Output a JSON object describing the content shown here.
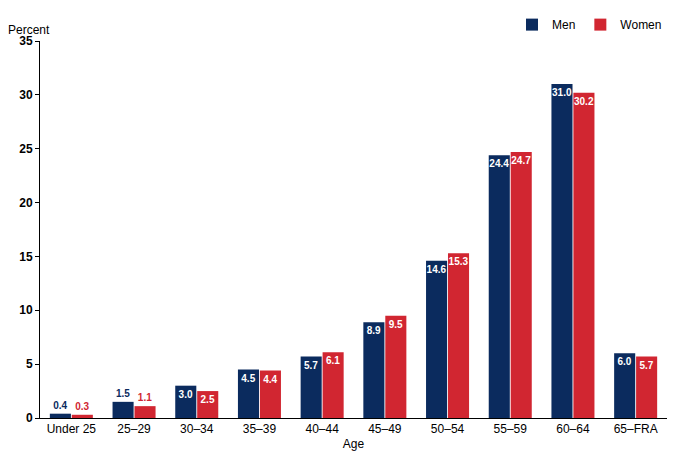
{
  "chart_data": {
    "type": "bar",
    "y_label": "Percent",
    "x_label": "Age",
    "categories": [
      "Under 25",
      "25–29",
      "30–34",
      "35–39",
      "40–44",
      "45–49",
      "50–54",
      "55–59",
      "60–64",
      "65–FRA"
    ],
    "series": [
      {
        "name": "Men",
        "color": "#0b2b5e",
        "values": [
          0.4,
          1.5,
          3.0,
          4.5,
          5.7,
          8.9,
          14.6,
          24.4,
          31.0,
          6.0
        ],
        "value_labels": [
          "0.4",
          "1.5",
          "3.0",
          "4.5",
          "5.7",
          "8.9",
          "14.6",
          "24.4",
          "31.0",
          "6.0"
        ]
      },
      {
        "name": "Women",
        "color": "#d12631",
        "values": [
          0.3,
          1.1,
          2.5,
          4.4,
          6.1,
          9.5,
          15.3,
          24.7,
          30.2,
          5.7
        ],
        "value_labels": [
          "0.3",
          "1.1",
          "2.5",
          "4.4",
          "6.1",
          "9.5",
          "15.3",
          "24.7",
          "30.2",
          "5.7"
        ]
      }
    ],
    "ylim": [
      0,
      35
    ],
    "yticks": [
      0,
      5,
      10,
      15,
      20,
      25,
      30,
      35
    ],
    "grid": false,
    "legend": "top right",
    "data_labels": true
  }
}
